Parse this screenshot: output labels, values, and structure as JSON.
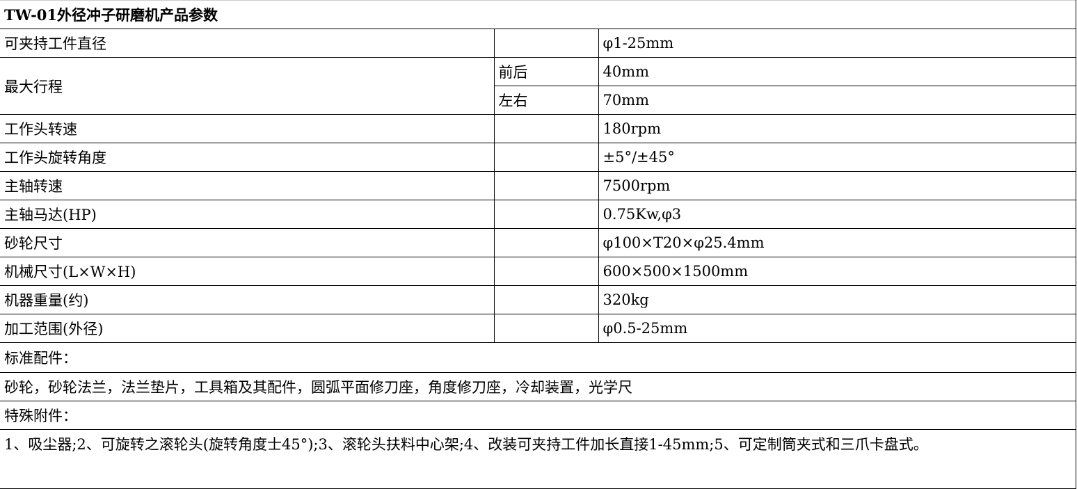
{
  "title": "TW-01外径冲子研磨机产品参数",
  "specs": [
    {
      "label": "可夹持工件直径",
      "value": "φ1-25mm"
    },
    {
      "label": "最大行程",
      "sub": [
        {
          "label": "前后",
          "value": "40mm"
        },
        {
          "label": "左右",
          "value": "70mm"
        }
      ]
    },
    {
      "label": "工作头转速",
      "value": "180rpm"
    },
    {
      "label": "工作头旋转角度",
      "value": "±5°/±45°"
    },
    {
      "label": "主轴转速",
      "value": "7500rpm"
    },
    {
      "label": "主轴马达(HP)",
      "value": "0.75Kw,φ3"
    },
    {
      "label": "砂轮尺寸",
      "value": "φ100×T20×φ25.4mm"
    },
    {
      "label": "机械尺寸(L×W×H)",
      "value": "600×500×1500mm"
    },
    {
      "label": "机器重量(约)",
      "value": "320kg"
    },
    {
      "label": "加工范围(外径)",
      "value": "φ0.5-25mm"
    }
  ],
  "standard": {
    "label": "标准配件：",
    "value": "砂轮，砂轮法兰，法兰垫片，工具箱及其配件，圆弧平面修刀座，角度修刀座，冷却装置，光学尺"
  },
  "special": {
    "label": "特殊附件：",
    "value": "1、吸尘器;2、可旋转之滚轮头(旋转角度士45°);3、滚轮头扶料中心架;4、改装可夹持工件加长直接1-45mm;5、可定制筒夹式和三爪卡盘式。"
  }
}
